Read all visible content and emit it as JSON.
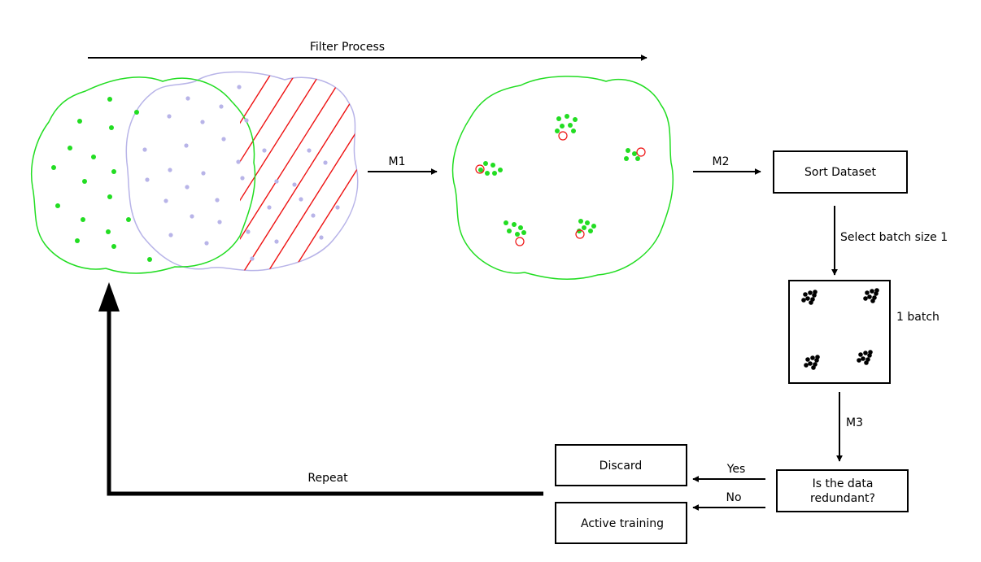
{
  "colors": {
    "green": "#22dd22",
    "lavender": "#b8b4e8",
    "red": "#ee1111",
    "black": "#000000"
  },
  "labels": {
    "filter_process": "Filter Process",
    "m1": "M1",
    "m2": "M2",
    "m3": "M3",
    "sort_dataset": "Sort Dataset",
    "select_batch": "Select batch size 1",
    "one_batch": "1 batch",
    "redundant_line1": "Is the data",
    "redundant_line2": "redundant?",
    "yes": "Yes",
    "no": "No",
    "discard": "Discard",
    "active_training": "Active training",
    "repeat": "Repeat"
  }
}
